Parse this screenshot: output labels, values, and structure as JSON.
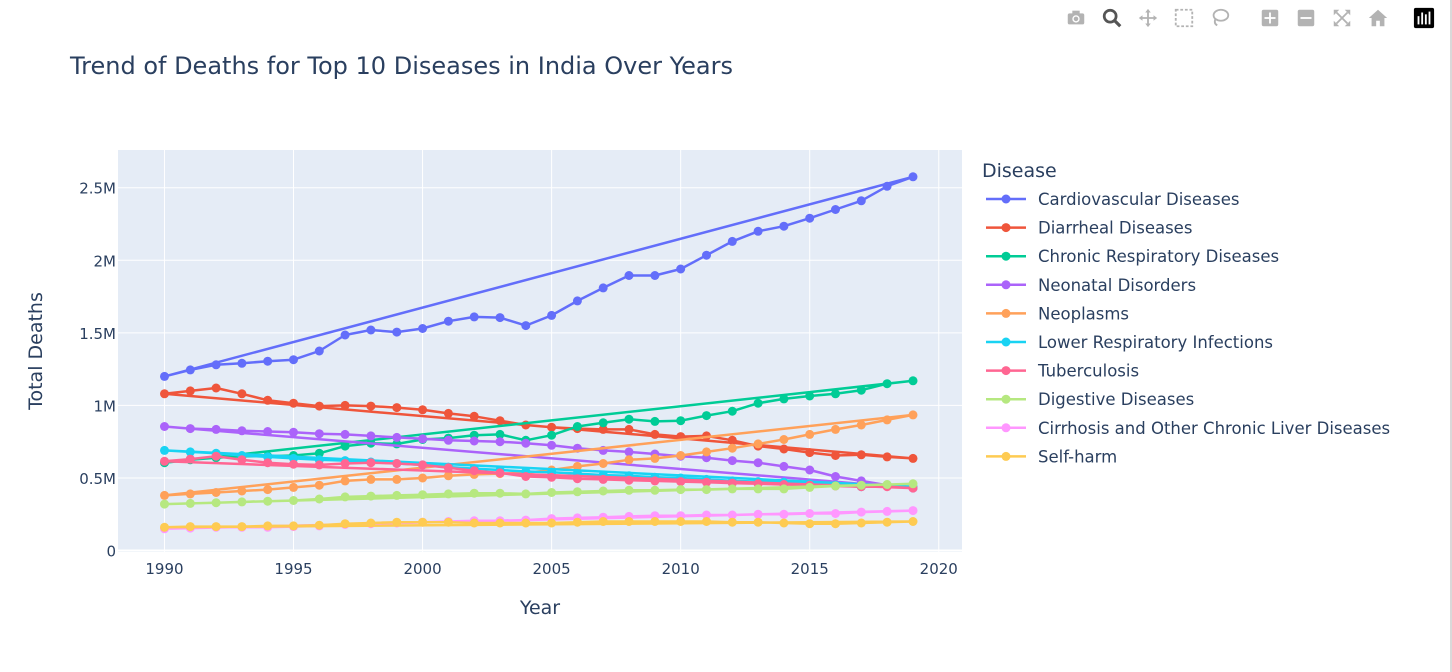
{
  "modebar": {
    "buttons": [
      {
        "name": "camera-icon",
        "title": "Download plot as a png"
      },
      {
        "name": "zoom-icon",
        "title": "Zoom"
      },
      {
        "name": "pan-icon",
        "title": "Pan"
      },
      {
        "name": "box-select-icon",
        "title": "Box Select"
      },
      {
        "name": "lasso-select-icon",
        "title": "Lasso Select"
      },
      {
        "name": "zoom-in-icon",
        "title": "Zoom in"
      },
      {
        "name": "zoom-out-icon",
        "title": "Zoom out"
      },
      {
        "name": "autoscale-icon",
        "title": "Autoscale"
      },
      {
        "name": "reset-axes-icon",
        "title": "Reset axes"
      },
      {
        "name": "plotly-logo-icon",
        "title": "Produced with Plotly"
      }
    ]
  },
  "chart_data": {
    "type": "line",
    "title": "Trend of Deaths for Top 10 Diseases in India Over Years",
    "xlabel": "Year",
    "ylabel": "Total Deaths",
    "legend_title": "Disease",
    "legend_position": "right",
    "grid": true,
    "xlim": [
      1988.2,
      2020.9
    ],
    "ylim": [
      -10000,
      2760000
    ],
    "x_ticks": [
      1990,
      1995,
      2000,
      2005,
      2010,
      2015,
      2020
    ],
    "y_ticks": [
      0,
      500000,
      1000000,
      1500000,
      2000000,
      2500000
    ],
    "y_tick_labels": [
      "0",
      "0.5M",
      "1M",
      "1.5M",
      "2M",
      "2.5M"
    ],
    "colors": {
      "plot_bg": "#e5ecf6",
      "grid": "#ffffff",
      "text": "#2a3f5f"
    },
    "series": [
      {
        "name": "Cardiovascular Diseases",
        "color": "#636efa",
        "x": [
          1990,
          2019,
          2018,
          2017,
          2016,
          2015,
          2014,
          2013,
          2012,
          2011,
          2010,
          2009,
          2008,
          2007,
          2006,
          2005,
          2004,
          2003,
          2002,
          2001,
          2000,
          1999,
          1998,
          1997,
          1996,
          1995,
          1994,
          1993,
          1992,
          1991,
          1990
        ],
        "values": [
          1200000,
          2575000,
          2510000,
          2410000,
          2350000,
          2290000,
          2235000,
          2200000,
          2130000,
          2035000,
          1940000,
          1895000,
          1895000,
          1810000,
          1720000,
          1620000,
          1550000,
          1605000,
          1610000,
          1580000,
          1530000,
          1505000,
          1520000,
          1485000,
          1375000,
          1315000,
          1305000,
          1290000,
          1280000,
          1245000,
          1200000
        ]
      },
      {
        "name": "Diarrheal Diseases",
        "color": "#ef553b",
        "x": [
          1990,
          2019,
          2018,
          2017,
          2016,
          2015,
          2014,
          2013,
          2012,
          2011,
          2010,
          2009,
          2008,
          2007,
          2006,
          2005,
          2004,
          2003,
          2002,
          2001,
          2000,
          1999,
          1998,
          1997,
          1996,
          1995,
          1994,
          1993,
          1992,
          1991,
          1990
        ],
        "values": [
          1080000,
          635000,
          645000,
          660000,
          655000,
          675000,
          700000,
          720000,
          760000,
          790000,
          785000,
          800000,
          835000,
          835000,
          840000,
          850000,
          865000,
          895000,
          925000,
          945000,
          970000,
          985000,
          995000,
          1000000,
          995000,
          1015000,
          1035000,
          1080000,
          1120000,
          1100000,
          1080000
        ]
      },
      {
        "name": "Chronic Respiratory Diseases",
        "color": "#00cc96",
        "x": [
          1990,
          2019,
          2018,
          2017,
          2016,
          2015,
          2014,
          2013,
          2012,
          2011,
          2010,
          2009,
          2008,
          2007,
          2006,
          2005,
          2004,
          2003,
          2002,
          2001,
          2000,
          1999,
          1998,
          1997,
          1996,
          1995,
          1994,
          1993,
          1992,
          1991,
          1990
        ],
        "values": [
          605000,
          1170000,
          1150000,
          1105000,
          1080000,
          1065000,
          1045000,
          1015000,
          960000,
          930000,
          895000,
          890000,
          905000,
          880000,
          855000,
          795000,
          760000,
          800000,
          795000,
          775000,
          765000,
          735000,
          740000,
          720000,
          670000,
          655000,
          650000,
          650000,
          640000,
          625000,
          605000
        ]
      },
      {
        "name": "Neonatal Disorders",
        "color": "#ab63fa",
        "x": [
          1990,
          2019,
          2018,
          2017,
          2016,
          2015,
          2014,
          2013,
          2012,
          2011,
          2010,
          2009,
          2008,
          2007,
          2006,
          2005,
          2004,
          2003,
          2002,
          2001,
          2000,
          1999,
          1998,
          1997,
          1996,
          1995,
          1994,
          1993,
          1992,
          1991,
          1990
        ],
        "values": [
          855000,
          430000,
          450000,
          480000,
          510000,
          555000,
          580000,
          605000,
          620000,
          640000,
          650000,
          665000,
          680000,
          690000,
          705000,
          725000,
          740000,
          750000,
          755000,
          760000,
          770000,
          780000,
          790000,
          800000,
          805000,
          815000,
          820000,
          825000,
          835000,
          840000,
          855000
        ]
      },
      {
        "name": "Neoplasms",
        "color": "#ffa15a",
        "x": [
          1990,
          2019,
          2018,
          2017,
          2016,
          2015,
          2014,
          2013,
          2012,
          2011,
          2010,
          2009,
          2008,
          2007,
          2006,
          2005,
          2004,
          2003,
          2002,
          2001,
          2000,
          1999,
          1998,
          1997,
          1996,
          1995,
          1994,
          1993,
          1992,
          1991,
          1990
        ],
        "values": [
          380000,
          935000,
          900000,
          865000,
          835000,
          800000,
          765000,
          735000,
          705000,
          680000,
          655000,
          635000,
          625000,
          600000,
          580000,
          555000,
          535000,
          530000,
          525000,
          515000,
          500000,
          490000,
          490000,
          480000,
          450000,
          435000,
          420000,
          410000,
          400000,
          390000,
          380000
        ]
      },
      {
        "name": "Lower Respiratory Infections",
        "color": "#19d3f3",
        "x": [
          1990,
          2019,
          2018,
          2017,
          2016,
          2015,
          2014,
          2013,
          2012,
          2011,
          2010,
          2009,
          2008,
          2007,
          2006,
          2005,
          2004,
          2003,
          2002,
          2001,
          2000,
          1999,
          1998,
          1997,
          1996,
          1995,
          1994,
          1993,
          1992,
          1991,
          1990
        ],
        "values": [
          690000,
          440000,
          450000,
          440000,
          450000,
          460000,
          470000,
          475000,
          480000,
          490000,
          500000,
          505000,
          515000,
          520000,
          530000,
          540000,
          545000,
          555000,
          565000,
          575000,
          590000,
          600000,
          610000,
          620000,
          625000,
          635000,
          645000,
          655000,
          670000,
          680000,
          690000
        ]
      },
      {
        "name": "Tuberculosis",
        "color": "#ff6692",
        "x": [
          1990,
          2019,
          2018,
          2017,
          2016,
          2015,
          2014,
          2013,
          2012,
          2011,
          2010,
          2009,
          2008,
          2007,
          2006,
          2005,
          2004,
          2003,
          2002,
          2001,
          2000,
          1999,
          1998,
          1997,
          1996,
          1995,
          1994,
          1993,
          1992,
          1991,
          1990
        ],
        "values": [
          615000,
          430000,
          440000,
          440000,
          445000,
          450000,
          455000,
          460000,
          465000,
          470000,
          475000,
          480000,
          485000,
          490000,
          495000,
          505000,
          510000,
          535000,
          550000,
          570000,
          590000,
          600000,
          605000,
          600000,
          590000,
          595000,
          605000,
          625000,
          650000,
          630000,
          615000
        ]
      },
      {
        "name": "Digestive Diseases",
        "color": "#b6e880",
        "x": [
          1990,
          2019,
          2018,
          2017,
          2016,
          2015,
          2014,
          2013,
          2012,
          2011,
          2010,
          2009,
          2008,
          2007,
          2006,
          2005,
          2004,
          2003,
          2002,
          2001,
          2000,
          1999,
          1998,
          1997,
          1996,
          1995,
          1994,
          1993,
          1992,
          1991,
          1990
        ],
        "values": [
          320000,
          460000,
          455000,
          450000,
          445000,
          435000,
          425000,
          425000,
          425000,
          420000,
          420000,
          415000,
          415000,
          410000,
          405000,
          400000,
          390000,
          395000,
          395000,
          390000,
          385000,
          380000,
          375000,
          370000,
          355000,
          345000,
          340000,
          335000,
          330000,
          325000,
          320000
        ]
      },
      {
        "name": "Cirrhosis and Other Chronic Liver Diseases",
        "color": "#ff97ff",
        "x": [
          1990,
          2019,
          2018,
          2017,
          2016,
          2015,
          2014,
          2013,
          2012,
          2011,
          2010,
          2009,
          2008,
          2007,
          2006,
          2005,
          2004,
          2003,
          2002,
          2001,
          2000,
          1999,
          1998,
          1997,
          1996,
          1995,
          1994,
          1993,
          1992,
          1991,
          1990
        ],
        "values": [
          150000,
          275000,
          270000,
          265000,
          255000,
          255000,
          250000,
          250000,
          245000,
          245000,
          240000,
          240000,
          235000,
          230000,
          225000,
          220000,
          210000,
          205000,
          205000,
          200000,
          195000,
          190000,
          185000,
          180000,
          170000,
          165000,
          160000,
          160000,
          160000,
          155000,
          150000
        ]
      },
      {
        "name": "Self-harm",
        "color": "#fecb52",
        "x": [
          1990,
          2019,
          2018,
          2017,
          2016,
          2015,
          2014,
          2013,
          2012,
          2011,
          2010,
          2009,
          2008,
          2007,
          2006,
          2005,
          2004,
          2003,
          2002,
          2001,
          2000,
          1999,
          1998,
          1997,
          1996,
          1995,
          1994,
          1993,
          1992,
          1991,
          1990
        ],
        "values": [
          160000,
          200000,
          195000,
          190000,
          185000,
          185000,
          190000,
          195000,
          195000,
          200000,
          200000,
          200000,
          200000,
          200000,
          195000,
          190000,
          190000,
          190000,
          190000,
          195000,
          195000,
          195000,
          190000,
          185000,
          175000,
          170000,
          170000,
          165000,
          165000,
          165000,
          160000
        ]
      }
    ]
  }
}
